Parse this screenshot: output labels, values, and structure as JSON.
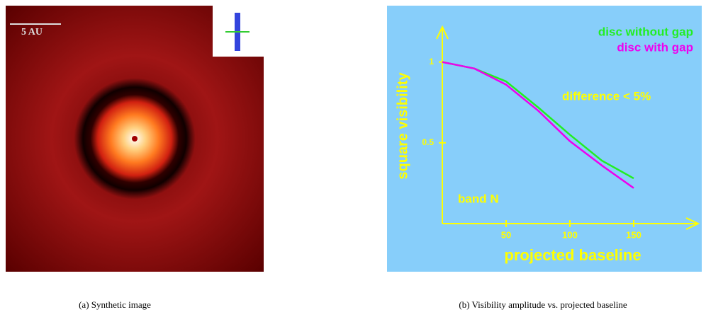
{
  "chart_data": {
    "type": "line",
    "xlabel": "projected baseline",
    "ylabel": "square visibility",
    "annotations": [
      "difference < 5%",
      "band N"
    ],
    "x": [
      0,
      25,
      50,
      75,
      100,
      125,
      150
    ],
    "series": [
      {
        "name": "disc without gap",
        "color": "#22ee22",
        "values": [
          1,
          0.96,
          0.88,
          0.72,
          0.55,
          0.39,
          0.28
        ]
      },
      {
        "name": "disc with gap",
        "color": "#ee00ee",
        "values": [
          1,
          0.96,
          0.86,
          0.7,
          0.51,
          0.36,
          0.22
        ]
      }
    ],
    "xlim": [
      0,
      200
    ],
    "ylim": [
      0,
      1.2
    ],
    "xticks": [
      50,
      100,
      150
    ],
    "yticks": [
      0.5,
      1
    ],
    "axis_color": "#ffff00",
    "background": "#87cefa"
  },
  "figure": {
    "scale_label": "5 AU",
    "captions": [
      "(a) Synthetic image",
      "(b) Visibility amplitude vs. projected baseline"
    ]
  }
}
